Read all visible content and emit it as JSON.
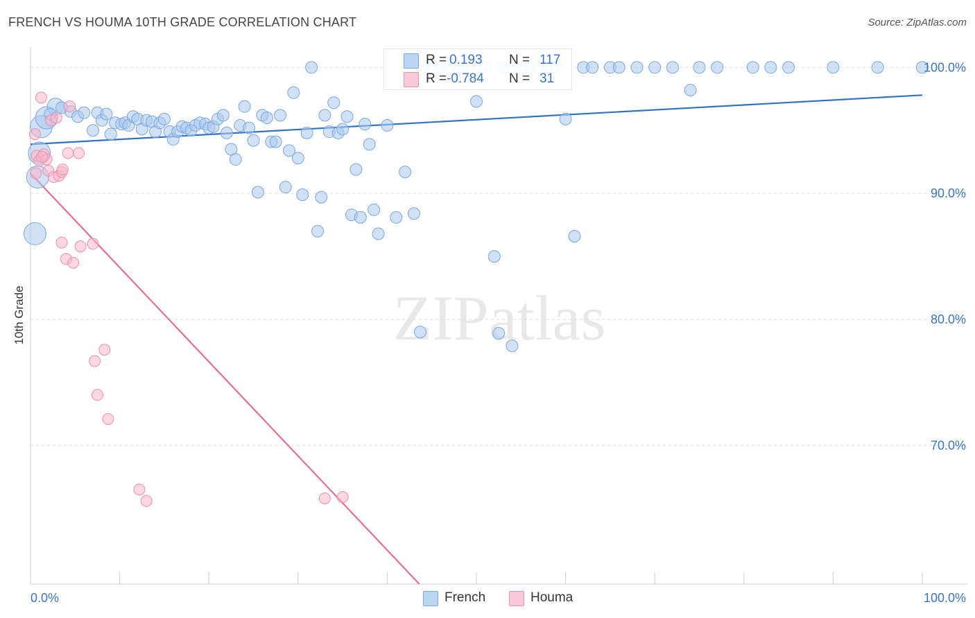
{
  "title": "FRENCH VS HOUMA 10TH GRADE CORRELATION CHART",
  "source": "Source: ZipAtlas.com",
  "watermark": "ZIPatlas",
  "legend": {
    "rows": [
      {
        "r_label": "R =",
        "r_value": "0.193",
        "n_label": "N =",
        "n_value": "117"
      },
      {
        "r_label": "R =",
        "r_value": "-0.784",
        "n_label": "N =",
        "n_value": "31"
      }
    ]
  },
  "bottom_legend": [
    "French",
    "Houma"
  ],
  "colors": {
    "french_fill": "#a9c8ee",
    "french_stroke": "#7aa7dd",
    "french_line": "#2f72c6",
    "houma_fill": "#f5b6c9",
    "houma_stroke": "#ec8fae",
    "houma_line": "#e56e98",
    "axis_text": "#3a75c4",
    "grid": "#dddddd"
  },
  "chart_data": {
    "type": "scatter",
    "title": "FRENCH VS HOUMA 10TH GRADE CORRELATION CHART",
    "xlabel": "",
    "ylabel": "10th Grade",
    "xlim": [
      0,
      100
    ],
    "ylim": [
      59,
      101.5
    ],
    "x_tick_labels": [
      {
        "value": 0,
        "label": "0.0%"
      },
      {
        "value": 100,
        "label": "100.0%"
      }
    ],
    "y_tick_labels": [
      {
        "value": 100,
        "label": "100.0%"
      },
      {
        "value": 90,
        "label": "90.0%"
      },
      {
        "value": 80,
        "label": "80.0%"
      },
      {
        "value": 70,
        "label": "70.0%"
      }
    ],
    "grid": true,
    "legend_position": "top-center",
    "series": [
      {
        "name": "French",
        "r": 0.193,
        "n": 117,
        "trend": {
          "x": [
            0,
            100
          ],
          "y": [
            93.9,
            97.8
          ]
        },
        "points": [
          [
            0.5,
            86.8,
            3
          ],
          [
            0.8,
            91.3,
            3
          ],
          [
            1.0,
            93.2,
            3
          ],
          [
            1.2,
            95.3,
            3
          ],
          [
            1.8,
            96.0,
            3
          ],
          [
            2.8,
            96.9,
            2
          ],
          [
            2.2,
            96.3,
            1
          ],
          [
            3.5,
            96.8,
            1
          ],
          [
            4.5,
            96.5,
            1
          ],
          [
            5.3,
            96.1,
            1
          ],
          [
            6.0,
            96.4,
            1
          ],
          [
            7.0,
            95.0,
            1
          ],
          [
            7.5,
            96.4,
            1
          ],
          [
            8.0,
            95.8,
            1
          ],
          [
            8.5,
            96.3,
            1
          ],
          [
            9.0,
            94.7,
            1
          ],
          [
            9.5,
            95.6,
            1
          ],
          [
            10.2,
            95.5,
            1
          ],
          [
            10.6,
            95.6,
            1
          ],
          [
            11.0,
            95.4,
            1
          ],
          [
            11.5,
            96.1,
            1
          ],
          [
            12.0,
            95.9,
            1
          ],
          [
            12.5,
            95.1,
            1
          ],
          [
            13.0,
            95.8,
            1
          ],
          [
            13.6,
            95.7,
            1
          ],
          [
            14.0,
            94.9,
            1
          ],
          [
            14.5,
            95.6,
            1
          ],
          [
            15.0,
            95.9,
            1
          ],
          [
            15.6,
            94.9,
            1
          ],
          [
            16.0,
            94.3,
            1
          ],
          [
            16.5,
            94.9,
            1
          ],
          [
            17.0,
            95.3,
            1
          ],
          [
            17.5,
            95.2,
            1
          ],
          [
            18.0,
            95.0,
            1
          ],
          [
            18.5,
            95.4,
            1
          ],
          [
            19.0,
            95.6,
            1
          ],
          [
            19.6,
            95.5,
            1
          ],
          [
            20.0,
            95.2,
            1
          ],
          [
            20.5,
            95.3,
            1
          ],
          [
            21.0,
            95.9,
            1
          ],
          [
            21.6,
            96.2,
            1
          ],
          [
            22.0,
            94.8,
            1
          ],
          [
            22.5,
            93.5,
            1
          ],
          [
            23.0,
            92.7,
            1
          ],
          [
            23.5,
            95.4,
            1
          ],
          [
            24.0,
            96.9,
            1
          ],
          [
            24.5,
            95.2,
            1
          ],
          [
            25.0,
            94.2,
            1
          ],
          [
            25.5,
            90.1,
            1
          ],
          [
            26.0,
            96.2,
            1
          ],
          [
            26.5,
            96.0,
            1
          ],
          [
            27.0,
            94.1,
            1
          ],
          [
            27.5,
            94.1,
            1
          ],
          [
            28.0,
            96.2,
            1
          ],
          [
            28.6,
            90.5,
            1
          ],
          [
            29.0,
            93.4,
            1
          ],
          [
            29.5,
            98.0,
            1
          ],
          [
            30.0,
            92.8,
            1
          ],
          [
            30.5,
            89.9,
            1
          ],
          [
            31.0,
            94.8,
            1
          ],
          [
            31.5,
            100.0,
            1
          ],
          [
            32.2,
            87.0,
            1
          ],
          [
            32.6,
            89.7,
            1
          ],
          [
            33.0,
            96.2,
            1
          ],
          [
            33.5,
            94.9,
            1
          ],
          [
            34.0,
            97.2,
            1
          ],
          [
            34.5,
            94.8,
            1
          ],
          [
            35.0,
            95.1,
            1
          ],
          [
            35.5,
            96.1,
            1
          ],
          [
            36.0,
            88.3,
            1
          ],
          [
            36.5,
            91.9,
            1
          ],
          [
            37.0,
            88.1,
            1
          ],
          [
            37.5,
            95.5,
            1
          ],
          [
            38.0,
            93.9,
            1
          ],
          [
            38.5,
            88.7,
            1
          ],
          [
            39.0,
            86.8,
            1
          ],
          [
            40.0,
            95.4,
            1
          ],
          [
            41.0,
            88.1,
            1
          ],
          [
            42.0,
            91.7,
            1
          ],
          [
            43.0,
            88.4,
            1
          ],
          [
            43.7,
            79.0,
            1
          ],
          [
            44.0,
            100.0,
            1
          ],
          [
            45.0,
            100.0,
            1
          ],
          [
            46.0,
            100.0,
            1
          ],
          [
            47.0,
            100.0,
            1
          ],
          [
            48.0,
            100.0,
            1
          ],
          [
            49.0,
            100.0,
            1
          ],
          [
            50.0,
            97.3,
            1
          ],
          [
            50.5,
            100.0,
            1
          ],
          [
            51.0,
            100.0,
            1
          ],
          [
            52.0,
            85.0,
            1
          ],
          [
            52.5,
            78.9,
            1
          ],
          [
            53.0,
            100.0,
            1
          ],
          [
            54.0,
            77.9,
            1
          ],
          [
            55.0,
            100.0,
            1
          ],
          [
            56.0,
            100.0,
            1
          ],
          [
            57.0,
            100.0,
            1
          ],
          [
            58.0,
            100.0,
            1
          ],
          [
            59.0,
            100.0,
            1
          ],
          [
            60.0,
            95.9,
            1
          ],
          [
            61.0,
            86.6,
            1
          ],
          [
            62.0,
            100.0,
            1
          ],
          [
            63.0,
            100.0,
            1
          ],
          [
            65.0,
            100.0,
            1
          ],
          [
            66.0,
            100.0,
            1
          ],
          [
            68.0,
            100.0,
            1
          ],
          [
            70.0,
            100.0,
            1
          ],
          [
            72.0,
            100.0,
            1
          ],
          [
            74.0,
            98.2,
            1
          ],
          [
            75.0,
            100.0,
            1
          ],
          [
            77.0,
            100.0,
            1
          ],
          [
            81.0,
            100.0,
            1
          ],
          [
            83.0,
            100.0,
            1
          ],
          [
            85.0,
            100.0,
            1
          ],
          [
            90.0,
            100.0,
            1
          ],
          [
            95.0,
            100.0,
            1
          ],
          [
            100.0,
            100.0,
            1
          ]
        ]
      },
      {
        "name": "Houma",
        "r": -0.784,
        "n": 31,
        "trend": {
          "x": [
            0,
            43.6
          ],
          "y": [
            91.6,
            59.0
          ]
        },
        "points": [
          [
            0.5,
            94.7
          ],
          [
            0.6,
            91.6
          ],
          [
            0.7,
            93.0
          ],
          [
            1.0,
            92.6
          ],
          [
            1.2,
            97.6
          ],
          [
            1.5,
            93.1
          ],
          [
            1.8,
            92.7
          ],
          [
            2.0,
            91.8
          ],
          [
            2.3,
            95.8
          ],
          [
            2.6,
            91.3
          ],
          [
            2.9,
            96.0
          ],
          [
            3.2,
            91.4
          ],
          [
            3.5,
            91.7
          ],
          [
            3.6,
            91.9
          ],
          [
            4.2,
            93.2
          ],
          [
            4.4,
            96.9
          ],
          [
            3.5,
            86.1
          ],
          [
            4.0,
            84.8
          ],
          [
            4.8,
            84.5
          ],
          [
            5.4,
            93.2
          ],
          [
            5.6,
            85.8
          ],
          [
            7.0,
            86.0
          ],
          [
            7.2,
            76.7
          ],
          [
            7.5,
            74.0
          ],
          [
            8.3,
            77.6
          ],
          [
            8.7,
            72.1
          ],
          [
            12.2,
            66.5
          ],
          [
            13.0,
            65.6
          ],
          [
            33.0,
            65.8
          ],
          [
            35.0,
            65.9
          ],
          [
            1.3,
            92.9
          ]
        ]
      }
    ]
  }
}
